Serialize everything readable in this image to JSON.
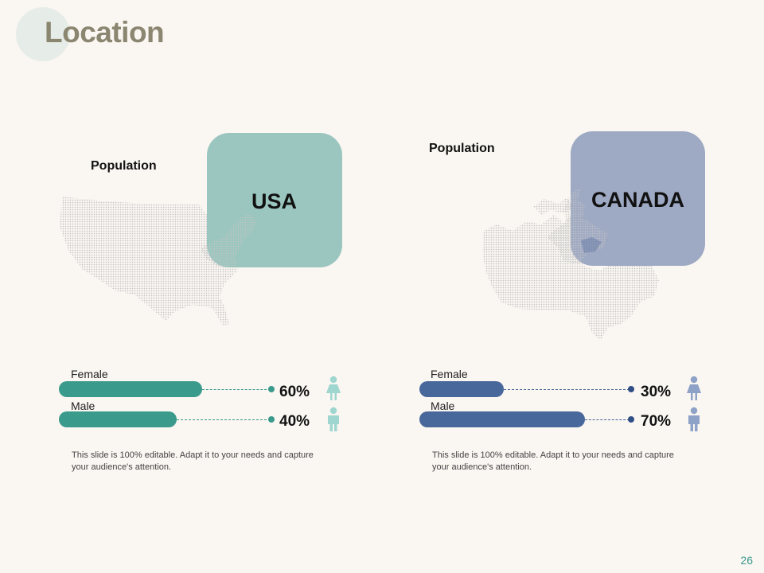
{
  "slide": {
    "title": "Location",
    "page_number": "26"
  },
  "colors": {
    "usa_card": "#9ac6bf",
    "canada_card": "#9ea9c3",
    "usa_bar": "#3a9a8b",
    "canada_bar": "#48679a",
    "usa_icon": "#9fd6cf",
    "canada_icon": "#8ea1c7",
    "map_dots": "#c9c9c9"
  },
  "panels": [
    {
      "country": "USA",
      "population_label": "Population",
      "bars": [
        {
          "label": "Female",
          "percent": 60,
          "display": "60%",
          "icon": "female-icon"
        },
        {
          "label": "Male",
          "percent": 40,
          "display": "40%",
          "icon": "male-icon"
        }
      ],
      "note": "This slide is 100% editable. Adapt it to your needs and capture your audience's attention."
    },
    {
      "country": "CANADA",
      "population_label": "Population",
      "bars": [
        {
          "label": "Female",
          "percent": 30,
          "display": "30%",
          "icon": "female-icon"
        },
        {
          "label": "Male",
          "percent": 70,
          "display": "70%",
          "icon": "male-icon"
        }
      ],
      "note": "This slide is 100% editable. Adapt it to your needs and capture your audience's attention."
    }
  ]
}
